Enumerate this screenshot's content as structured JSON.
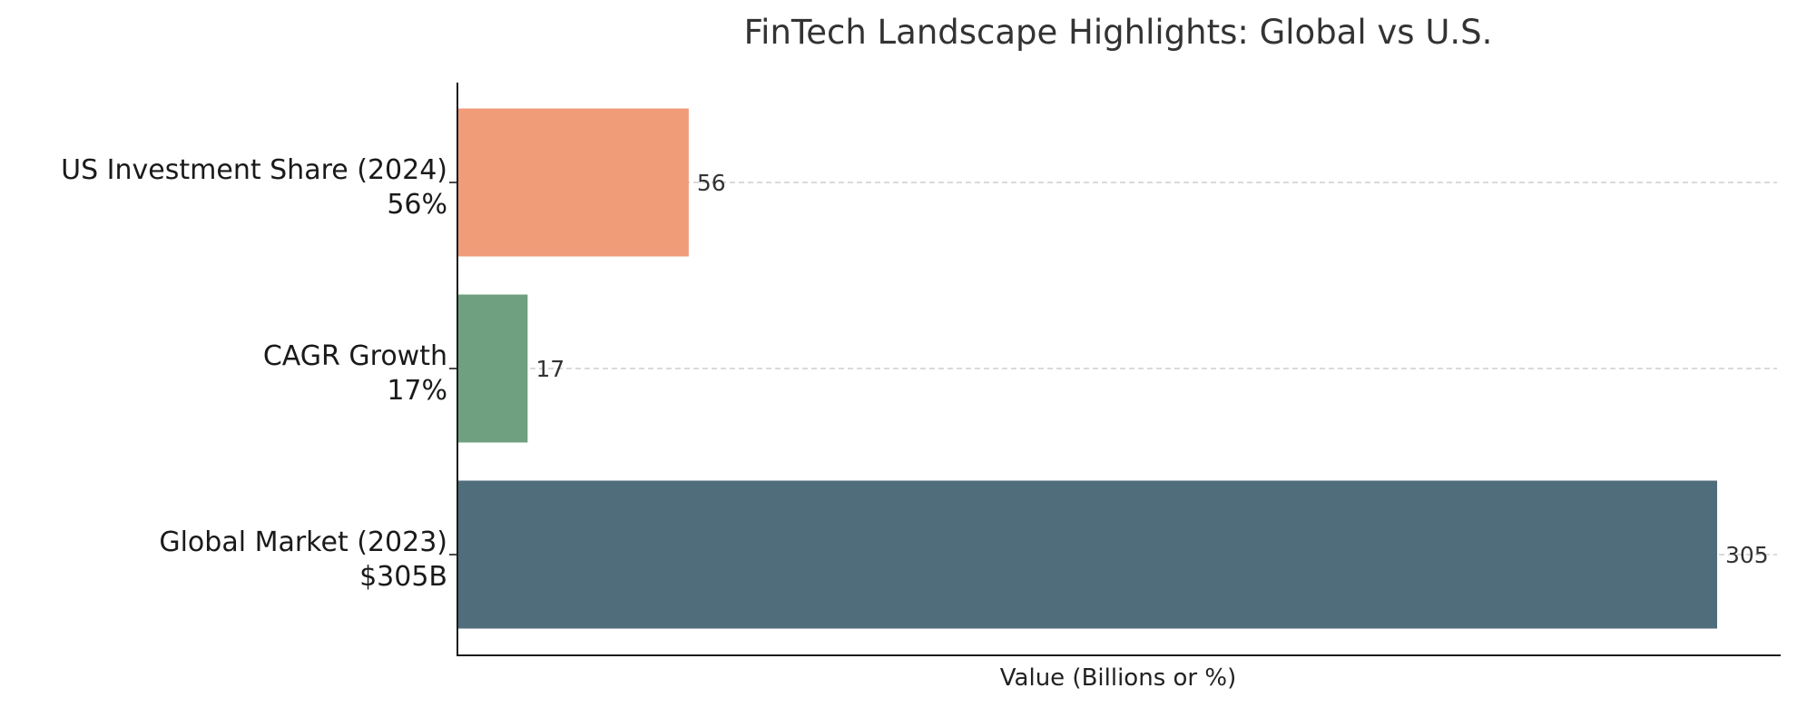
{
  "chart_data": {
    "type": "bar",
    "orientation": "horizontal",
    "title": "FinTech Landscape Highlights: Global vs U.S.",
    "xlabel": "Value (Billions or %)",
    "ylabel": "",
    "xlim": [
      0,
      320
    ],
    "grid": true,
    "categories": [
      {
        "line1": "US Investment Share (2024)",
        "line2": "56%"
      },
      {
        "line1": "CAGR Growth",
        "line2": "17%"
      },
      {
        "line1": "Global Market (2023)",
        "line2": "$305B"
      }
    ],
    "values": [
      56,
      17,
      305
    ],
    "value_labels": [
      "56",
      "17",
      "305"
    ],
    "colors": [
      "#f09c79",
      "#6fa07f",
      "#506d7b"
    ]
  }
}
